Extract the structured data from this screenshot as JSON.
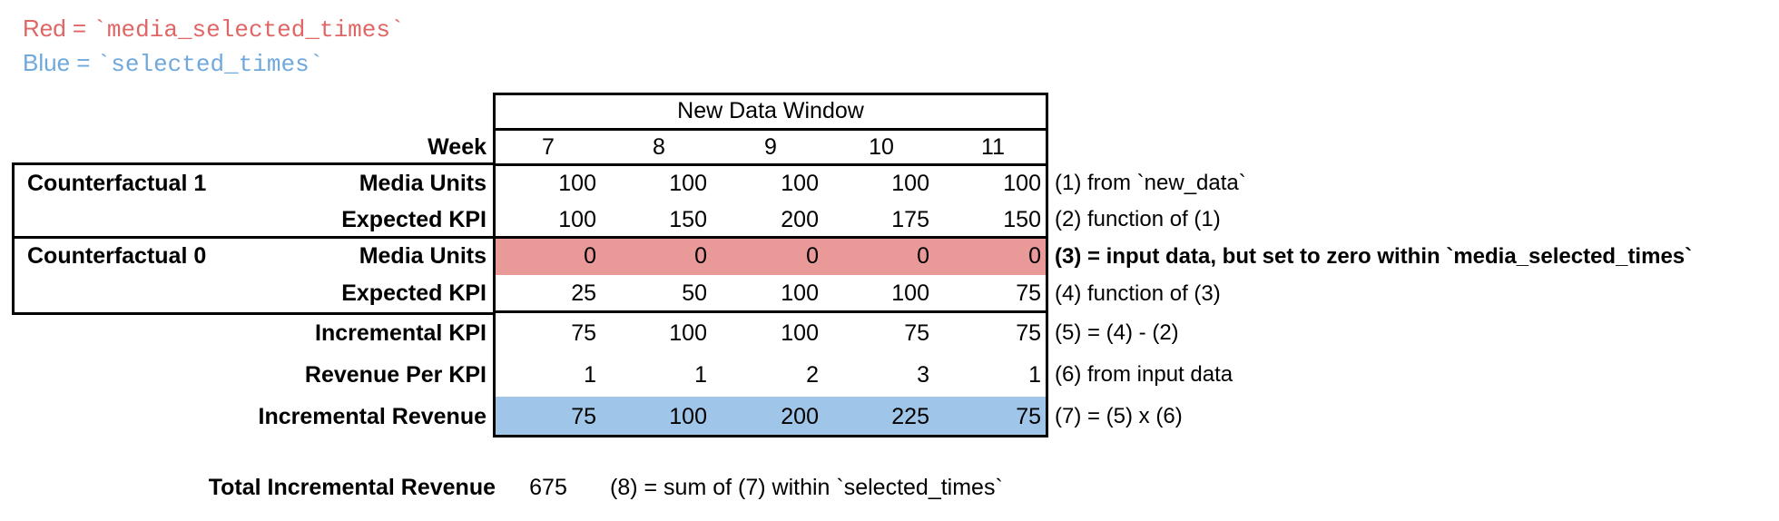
{
  "legend": {
    "red": {
      "prefix": "Red = ",
      "code": "`media_selected_times`",
      "color": "#e06666"
    },
    "blue": {
      "prefix": "Blue = ",
      "code": "`selected_times`",
      "color": "#6fa8dc"
    }
  },
  "chart_data": {
    "type": "table",
    "header": "New Data Window",
    "week_label": "Week",
    "weeks": [
      "7",
      "8",
      "9",
      "10",
      "11"
    ],
    "groups": [
      {
        "name": "Counterfactual 1",
        "rows": [
          "Media Units",
          "Expected KPI"
        ]
      },
      {
        "name": "Counterfactual 0",
        "rows": [
          "Media Units",
          "Expected KPI"
        ]
      }
    ],
    "rows": [
      {
        "label": "Media Units",
        "values": [
          100,
          100,
          100,
          100,
          100
        ],
        "highlight": "none",
        "note": "(1) from `new_data`"
      },
      {
        "label": "Expected KPI",
        "values": [
          100,
          150,
          200,
          175,
          150
        ],
        "highlight": "none",
        "note": "(2) function of (1)"
      },
      {
        "label": "Media Units",
        "values": [
          0,
          0,
          0,
          0,
          0
        ],
        "highlight": "red",
        "note": "(3) = input data, but set to zero within `media_selected_times`"
      },
      {
        "label": "Expected KPI",
        "values": [
          25,
          50,
          100,
          100,
          75
        ],
        "highlight": "none",
        "note": "(4) function of (3)"
      },
      {
        "label": "Incremental KPI",
        "values": [
          75,
          100,
          100,
          75,
          75
        ],
        "highlight": "none",
        "note": "(5) = (4) - (2)"
      },
      {
        "label": "Revenue Per KPI",
        "values": [
          1,
          1,
          2,
          3,
          1
        ],
        "highlight": "none",
        "note": "(6) from input data"
      },
      {
        "label": "Incremental Revenue",
        "values": [
          75,
          100,
          200,
          225,
          75
        ],
        "highlight": "blue",
        "note": "(7) = (5) x (6)"
      }
    ],
    "total": {
      "label": "Total Incremental Revenue",
      "value": "675",
      "note": "(8) = sum of (7) within `selected_times`"
    },
    "colors": {
      "red_fill": "#ea9999",
      "blue_fill": "#9fc5e8",
      "red_text": "#e06666",
      "blue_text": "#6fa8dc",
      "border": "#000000"
    },
    "layout_hints": {
      "grid": "partial-borders",
      "columns_right_aligned": true,
      "week_row_centered": true
    }
  }
}
